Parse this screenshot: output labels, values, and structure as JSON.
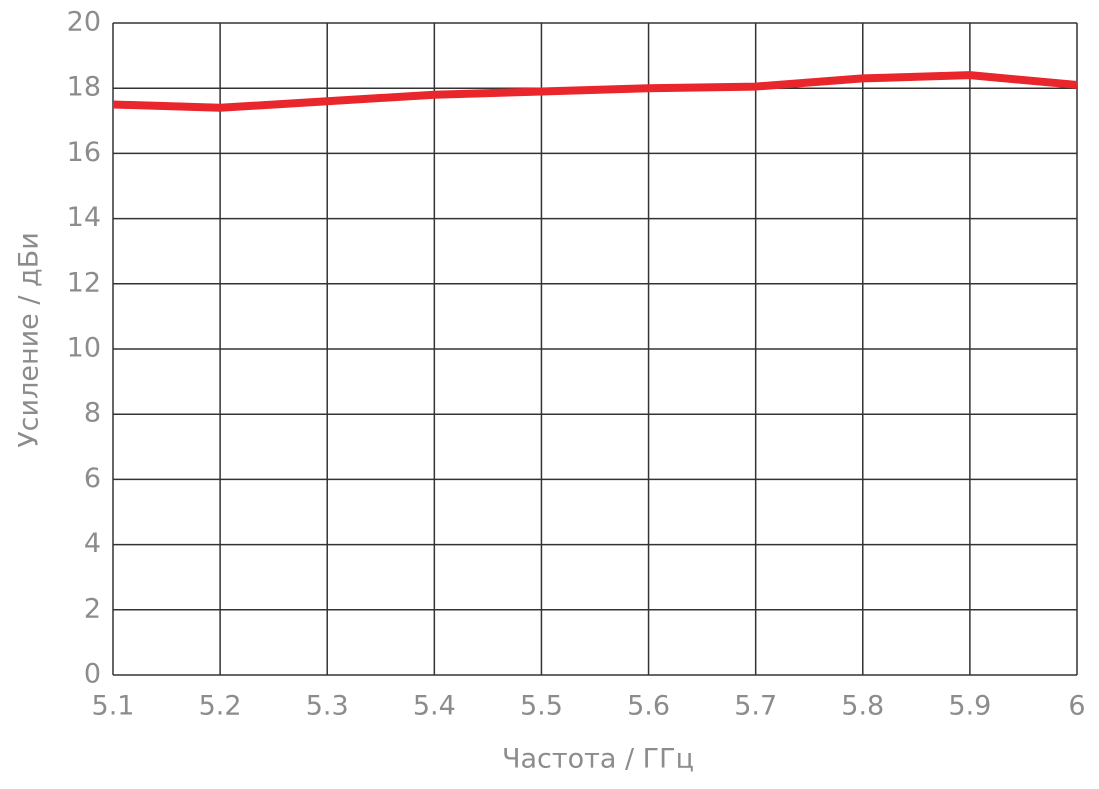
{
  "chart_data": {
    "type": "line",
    "x": [
      5.1,
      5.2,
      5.3,
      5.4,
      5.5,
      5.6,
      5.7,
      5.8,
      5.9,
      6
    ],
    "values": [
      17.5,
      17.4,
      17.6,
      17.8,
      17.9,
      18.0,
      18.05,
      18.3,
      18.4,
      18.1
    ],
    "color": "#e8262c",
    "xlabel": "Частота / ГГц",
    "ylabel": "Усиление / дБи",
    "xlim": [
      5.1,
      6
    ],
    "xticks": [
      5.1,
      5.2,
      5.3,
      5.4,
      5.5,
      5.6,
      5.7,
      5.8,
      5.9,
      6
    ],
    "ylim": [
      0,
      20
    ],
    "yticks": [
      0,
      2,
      4,
      6,
      8,
      10,
      12,
      14,
      16,
      18,
      20
    ],
    "grid": true
  }
}
